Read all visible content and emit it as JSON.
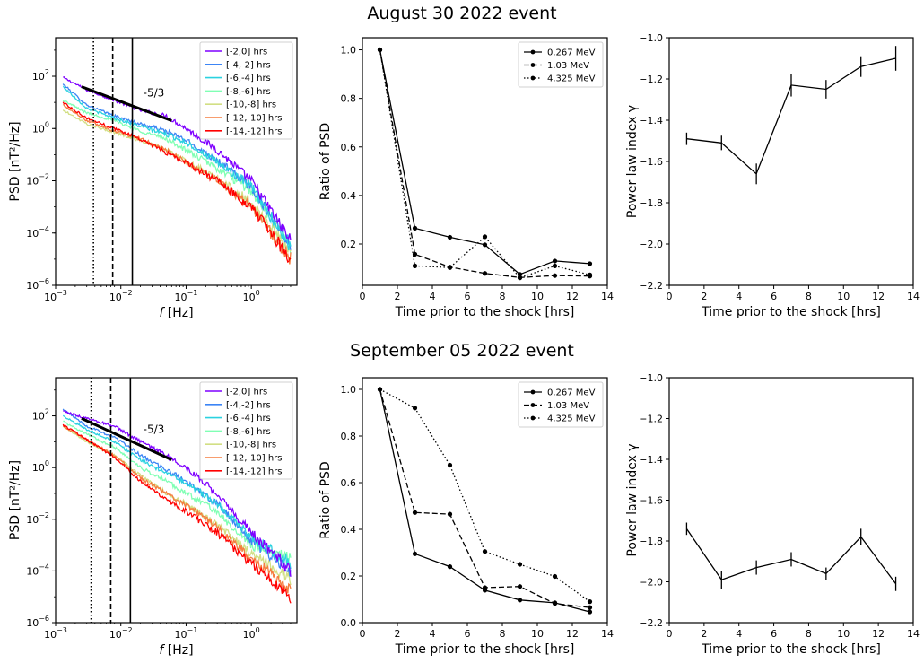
{
  "figure": {
    "event_titles": [
      "August 30 2022 event",
      "September 05 2022 event"
    ]
  },
  "colors": {
    "series": [
      "#7f00ff",
      "#3c85f5",
      "#2ad2e0",
      "#80ffb4",
      "#d2df84",
      "#f57d3f",
      "#ff0000"
    ]
  },
  "chart_data": [
    {
      "id": "aug-psd",
      "type": "line",
      "title": "",
      "xlabel": "f [Hz]",
      "ylabel": "PSD [nT²/Hz]",
      "xscale": "log",
      "yscale": "log",
      "xlim": [
        0.001,
        5
      ],
      "ylim": [
        1e-06,
        3000
      ],
      "xticks": [
        {
          "v": 0.001,
          "b": "10",
          "e": "−3"
        },
        {
          "v": 0.01,
          "b": "10",
          "e": "−2"
        },
        {
          "v": 0.1,
          "b": "10",
          "e": "−1"
        },
        {
          "v": 1,
          "b": "10",
          "e": "0"
        }
      ],
      "yticks": [
        {
          "v": 1e-06,
          "b": "10",
          "e": "−6"
        },
        {
          "v": 0.0001,
          "b": "10",
          "e": "−4"
        },
        {
          "v": 0.01,
          "b": "10",
          "e": "−2"
        },
        {
          "v": 1,
          "b": "10",
          "e": "0"
        },
        {
          "v": 100,
          "b": "10",
          "e": "2"
        }
      ],
      "series": [
        {
          "name": "[-2,0] hrs",
          "values_at": [
            [
              0.0013,
              90
            ],
            [
              0.003,
              30
            ],
            [
              0.008,
              12
            ],
            [
              0.02,
              5
            ],
            [
              0.05,
              3
            ],
            [
              0.1,
              1
            ],
            [
              0.3,
              0.15
            ],
            [
              1,
              0.01
            ],
            [
              4,
              5e-05
            ]
          ]
        },
        {
          "name": "[-4,-2] hrs",
          "values_at": [
            [
              0.0013,
              50
            ],
            [
              0.003,
              8
            ],
            [
              0.008,
              3
            ],
            [
              0.02,
              1.5
            ],
            [
              0.05,
              0.8
            ],
            [
              0.1,
              0.35
            ],
            [
              0.3,
              0.06
            ],
            [
              1,
              0.006
            ],
            [
              4,
              4e-05
            ]
          ]
        },
        {
          "name": "[-6,-4] hrs",
          "values_at": [
            [
              0.0013,
              40
            ],
            [
              0.003,
              6
            ],
            [
              0.008,
              2.5
            ],
            [
              0.02,
              1.2
            ],
            [
              0.05,
              0.6
            ],
            [
              0.1,
              0.3
            ],
            [
              0.3,
              0.05
            ],
            [
              1,
              0.006
            ],
            [
              4,
              3e-05
            ]
          ]
        },
        {
          "name": "[-8,-6] hrs",
          "values_at": [
            [
              0.0013,
              12
            ],
            [
              0.003,
              4
            ],
            [
              0.008,
              2
            ],
            [
              0.02,
              0.8
            ],
            [
              0.05,
              0.4
            ],
            [
              0.1,
              0.15
            ],
            [
              0.3,
              0.03
            ],
            [
              1,
              0.004
            ],
            [
              4,
              3e-05
            ]
          ]
        },
        {
          "name": "[-10,-8] hrs",
          "values_at": [
            [
              0.0013,
              5
            ],
            [
              0.003,
              1.5
            ],
            [
              0.008,
              0.7
            ],
            [
              0.02,
              0.35
            ],
            [
              0.05,
              0.15
            ],
            [
              0.1,
              0.06
            ],
            [
              0.3,
              0.012
            ],
            [
              1,
              0.0015
            ],
            [
              4,
              2e-05
            ]
          ]
        },
        {
          "name": "[-12,-10] hrs",
          "values_at": [
            [
              0.0013,
              8
            ],
            [
              0.003,
              2
            ],
            [
              0.008,
              0.8
            ],
            [
              0.02,
              0.4
            ],
            [
              0.05,
              0.15
            ],
            [
              0.1,
              0.05
            ],
            [
              0.3,
              0.01
            ],
            [
              1,
              0.001
            ],
            [
              4,
              1e-05
            ]
          ]
        },
        {
          "name": "[-14,-12] hrs",
          "values_at": [
            [
              0.0013,
              10
            ],
            [
              0.003,
              2.5
            ],
            [
              0.008,
              1
            ],
            [
              0.02,
              0.4
            ],
            [
              0.05,
              0.12
            ],
            [
              0.1,
              0.05
            ],
            [
              0.3,
              0.01
            ],
            [
              1,
              0.001
            ],
            [
              4,
              1e-05
            ]
          ]
        }
      ],
      "vlines": [
        {
          "x": 0.0038,
          "style": "dotted"
        },
        {
          "x": 0.0075,
          "style": "dashed"
        },
        {
          "x": 0.015,
          "style": "solid"
        }
      ],
      "slope_line": {
        "label": "-5/3",
        "x": [
          0.0025,
          0.06
        ],
        "y": [
          40,
          2
        ]
      },
      "legend": "top-right"
    },
    {
      "id": "aug-ratio",
      "type": "line",
      "title": "",
      "xlabel": "Time prior to the shock [hrs]",
      "ylabel": "Ratio of PSD",
      "xlim": [
        0,
        14
      ],
      "ylim": [
        0.03,
        1.05
      ],
      "xticks": [
        0,
        2,
        4,
        6,
        8,
        10,
        12,
        14
      ],
      "yticks": [
        0.2,
        0.4,
        0.6,
        0.8,
        1.0
      ],
      "x": [
        1,
        3,
        5,
        7,
        9,
        11,
        13
      ],
      "series": [
        {
          "name": "0.267 MeV",
          "style": "solid",
          "values": [
            1.0,
            0.265,
            0.228,
            0.197,
            0.075,
            0.13,
            0.119
          ]
        },
        {
          "name": "1.03 MeV",
          "style": "dashed",
          "values": [
            1.0,
            0.158,
            0.105,
            0.079,
            0.062,
            0.07,
            0.068
          ]
        },
        {
          "name": "4.325 MeV",
          "style": "dotted",
          "values": [
            1.0,
            0.11,
            0.103,
            0.23,
            0.061,
            0.11,
            0.073
          ]
        }
      ],
      "legend": "top-right"
    },
    {
      "id": "aug-index",
      "type": "line",
      "title": "",
      "xlabel": "Time prior to the shock [hrs]",
      "ylabel": "Power law index γ",
      "xlim": [
        0,
        14
      ],
      "ylim": [
        -2.2,
        -1.0
      ],
      "xticks": [
        0,
        2,
        4,
        6,
        8,
        10,
        12,
        14
      ],
      "yticks": [
        -2.2,
        -2.0,
        -1.8,
        -1.6,
        -1.4,
        -1.2,
        -1.0
      ],
      "x": [
        1,
        3,
        5,
        7,
        9,
        11,
        13
      ],
      "series": [
        {
          "name": "gamma",
          "style": "solid",
          "values": [
            -1.49,
            -1.51,
            -1.66,
            -1.23,
            -1.25,
            -1.14,
            -1.1
          ],
          "errors": [
            0.03,
            0.035,
            0.05,
            0.055,
            0.045,
            0.05,
            0.06
          ]
        }
      ]
    },
    {
      "id": "sep-psd",
      "type": "line",
      "title": "",
      "xlabel": "f [Hz]",
      "ylabel": "PSD [nT²/Hz]",
      "xscale": "log",
      "yscale": "log",
      "xlim": [
        0.001,
        5
      ],
      "ylim": [
        1e-06,
        3000
      ],
      "xticks": [
        {
          "v": 0.001,
          "b": "10",
          "e": "−3"
        },
        {
          "v": 0.01,
          "b": "10",
          "e": "−2"
        },
        {
          "v": 0.1,
          "b": "10",
          "e": "−1"
        },
        {
          "v": 1,
          "b": "10",
          "e": "0"
        }
      ],
      "yticks": [
        {
          "v": 1e-06,
          "b": "10",
          "e": "−6"
        },
        {
          "v": 0.0001,
          "b": "10",
          "e": "−4"
        },
        {
          "v": 0.01,
          "b": "10",
          "e": "−2"
        },
        {
          "v": 1,
          "b": "10",
          "e": "0"
        },
        {
          "v": 100,
          "b": "10",
          "e": "2"
        }
      ],
      "series": [
        {
          "name": "[-2,0] hrs",
          "values_at": [
            [
              0.0013,
              150
            ],
            [
              0.003,
              80
            ],
            [
              0.008,
              40
            ],
            [
              0.02,
              10
            ],
            [
              0.05,
              3
            ],
            [
              0.1,
              1
            ],
            [
              0.3,
              0.1
            ],
            [
              1,
              0.003
            ],
            [
              4,
              0.0001
            ]
          ]
        },
        {
          "name": "[-4,-2] hrs",
          "values_at": [
            [
              0.0013,
              180
            ],
            [
              0.003,
              40
            ],
            [
              0.008,
              15
            ],
            [
              0.02,
              3
            ],
            [
              0.05,
              0.8
            ],
            [
              0.1,
              0.3
            ],
            [
              0.3,
              0.04
            ],
            [
              1,
              0.0015
            ],
            [
              4,
              0.0001
            ]
          ]
        },
        {
          "name": "[-6,-4] hrs",
          "values_at": [
            [
              0.0013,
              100
            ],
            [
              0.003,
              30
            ],
            [
              0.008,
              10
            ],
            [
              0.02,
              2
            ],
            [
              0.05,
              0.6
            ],
            [
              0.1,
              0.25
            ],
            [
              0.3,
              0.04
            ],
            [
              1,
              0.002
            ],
            [
              4,
              0.0002
            ]
          ]
        },
        {
          "name": "[-8,-6] hrs",
          "values_at": [
            [
              0.0013,
              60
            ],
            [
              0.003,
              20
            ],
            [
              0.008,
              6
            ],
            [
              0.02,
              1
            ],
            [
              0.05,
              0.3
            ],
            [
              0.1,
              0.1
            ],
            [
              0.3,
              0.02
            ],
            [
              1,
              0.001
            ],
            [
              4,
              0.0003
            ]
          ]
        },
        {
          "name": "[-10,-8] hrs",
          "values_at": [
            [
              0.0013,
              40
            ],
            [
              0.003,
              10
            ],
            [
              0.008,
              3
            ],
            [
              0.02,
              0.5
            ],
            [
              0.05,
              0.1
            ],
            [
              0.1,
              0.04
            ],
            [
              0.3,
              0.006
            ],
            [
              1,
              0.0005
            ],
            [
              4,
              5e-05
            ]
          ]
        },
        {
          "name": "[-12,-10] hrs",
          "values_at": [
            [
              0.0013,
              40
            ],
            [
              0.003,
              12
            ],
            [
              0.008,
              3
            ],
            [
              0.02,
              0.4
            ],
            [
              0.05,
              0.1
            ],
            [
              0.1,
              0.035
            ],
            [
              0.3,
              0.005
            ],
            [
              1,
              0.0003
            ],
            [
              4,
              2e-05
            ]
          ]
        },
        {
          "name": "[-14,-12] hrs",
          "values_at": [
            [
              0.0013,
              45
            ],
            [
              0.003,
              12
            ],
            [
              0.008,
              2.5
            ],
            [
              0.02,
              0.3
            ],
            [
              0.05,
              0.06
            ],
            [
              0.1,
              0.02
            ],
            [
              0.3,
              0.003
            ],
            [
              1,
              0.0002
            ],
            [
              4,
              1e-05
            ]
          ]
        }
      ],
      "vlines": [
        {
          "x": 0.0035,
          "style": "dotted"
        },
        {
          "x": 0.007,
          "style": "dashed"
        },
        {
          "x": 0.014,
          "style": "solid"
        }
      ],
      "slope_line": {
        "label": "-5/3",
        "x": [
          0.0025,
          0.06
        ],
        "y": [
          80,
          2
        ]
      },
      "legend": "top-right"
    },
    {
      "id": "sep-ratio",
      "type": "line",
      "title": "",
      "xlabel": "Time prior to the shock [hrs]",
      "ylabel": "Ratio of PSD",
      "xlim": [
        0,
        14
      ],
      "ylim": [
        0.0,
        1.05
      ],
      "xticks": [
        0,
        2,
        4,
        6,
        8,
        10,
        12,
        14
      ],
      "yticks": [
        0.0,
        0.2,
        0.4,
        0.6,
        0.8,
        1.0
      ],
      "x": [
        1,
        3,
        5,
        7,
        9,
        11,
        13
      ],
      "series": [
        {
          "name": "0.267 MeV",
          "style": "solid",
          "values": [
            1.0,
            0.295,
            0.24,
            0.139,
            0.097,
            0.085,
            0.046
          ]
        },
        {
          "name": "1.03 MeV",
          "style": "dashed",
          "values": [
            1.0,
            0.472,
            0.465,
            0.15,
            0.155,
            0.082,
            0.065
          ]
        },
        {
          "name": "4.325 MeV",
          "style": "dotted",
          "values": [
            1.0,
            0.92,
            0.675,
            0.305,
            0.25,
            0.198,
            0.09
          ]
        }
      ],
      "legend": "top-right"
    },
    {
      "id": "sep-index",
      "type": "line",
      "title": "",
      "xlabel": "Time prior to the shock [hrs]",
      "ylabel": "Power law index γ",
      "xlim": [
        0,
        14
      ],
      "ylim": [
        -2.2,
        -1.0
      ],
      "xticks": [
        0,
        2,
        4,
        6,
        8,
        10,
        12,
        14
      ],
      "yticks": [
        -2.2,
        -2.0,
        -1.8,
        -1.6,
        -1.4,
        -1.2,
        -1.0
      ],
      "x": [
        1,
        3,
        5,
        7,
        9,
        11,
        13
      ],
      "series": [
        {
          "name": "gamma",
          "style": "solid",
          "values": [
            -1.74,
            -1.99,
            -1.93,
            -1.89,
            -1.96,
            -1.78,
            -2.01
          ],
          "errors": [
            0.03,
            0.045,
            0.035,
            0.035,
            0.03,
            0.04,
            0.035
          ]
        }
      ]
    }
  ]
}
